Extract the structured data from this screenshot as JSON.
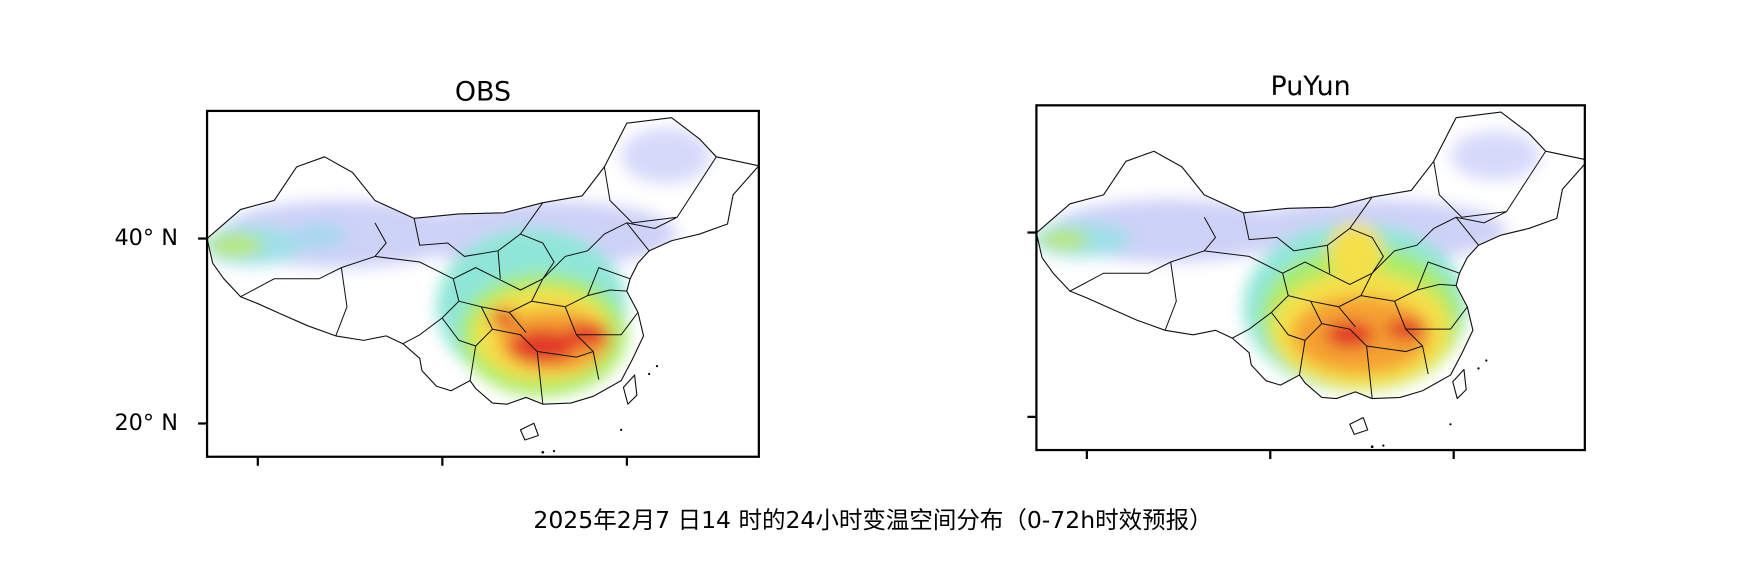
{
  "panels": [
    {
      "title": "OBS",
      "xlim": [
        74.5,
        134.3
      ],
      "ylim": [
        16.4,
        53.8
      ],
      "xticks": [
        80,
        100,
        120
      ],
      "yticks": [
        {
          "value": 20,
          "label": "20° N"
        },
        {
          "value": 40,
          "label": "40° N"
        }
      ],
      "ytick_labels": true
    },
    {
      "title": "PuYun",
      "xlim": [
        74.5,
        134.3
      ],
      "ylim": [
        16.4,
        53.8
      ],
      "xticks": [
        80,
        100,
        120
      ],
      "yticks": [
        20,
        40
      ],
      "ytick_labels": false
    }
  ],
  "caption": "2025年2月7 日14 时的24小时变温空间分布（0-72h时效预报）"
}
